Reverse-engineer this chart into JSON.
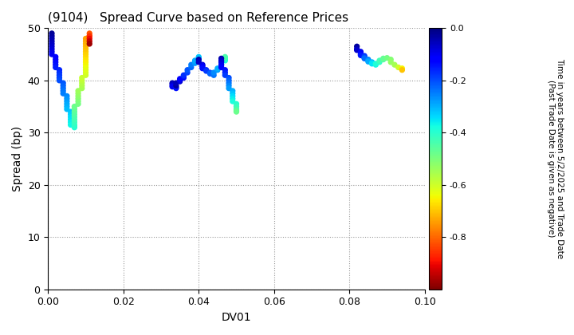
{
  "title": "(9104)   Spread Curve based on Reference Prices",
  "xlabel": "DV01",
  "ylabel": "Spread (bp)",
  "xlim": [
    0.0,
    0.1
  ],
  "ylim": [
    0,
    50
  ],
  "xticks": [
    0.0,
    0.02,
    0.04,
    0.06,
    0.08,
    0.1
  ],
  "yticks": [
    0,
    10,
    20,
    30,
    40,
    50
  ],
  "colorbar_label": "Time in years between 5/2/2025 and Trade Date\n(Past Trade Date is given as negative)",
  "cmap": "jet_r",
  "vmin": -1.0,
  "vmax": 0.0,
  "colorbar_ticks": [
    0.0,
    -0.2,
    -0.4,
    -0.6,
    -0.8
  ],
  "points": [
    [
      0.001,
      49.0,
      -0.02
    ],
    [
      0.001,
      48.5,
      -0.03
    ],
    [
      0.001,
      48.0,
      -0.04
    ],
    [
      0.001,
      47.5,
      -0.05
    ],
    [
      0.001,
      47.0,
      -0.06
    ],
    [
      0.001,
      46.5,
      -0.07
    ],
    [
      0.001,
      46.0,
      -0.08
    ],
    [
      0.001,
      45.5,
      -0.09
    ],
    [
      0.001,
      45.0,
      -0.1
    ],
    [
      0.002,
      44.5,
      -0.11
    ],
    [
      0.002,
      44.0,
      -0.12
    ],
    [
      0.002,
      43.5,
      -0.13
    ],
    [
      0.002,
      43.0,
      -0.14
    ],
    [
      0.002,
      42.5,
      -0.15
    ],
    [
      0.003,
      42.0,
      -0.16
    ],
    [
      0.003,
      41.5,
      -0.17
    ],
    [
      0.003,
      41.0,
      -0.18
    ],
    [
      0.003,
      40.5,
      -0.19
    ],
    [
      0.003,
      40.0,
      -0.2
    ],
    [
      0.004,
      39.5,
      -0.21
    ],
    [
      0.004,
      39.0,
      -0.22
    ],
    [
      0.004,
      38.5,
      -0.23
    ],
    [
      0.004,
      38.0,
      -0.24
    ],
    [
      0.004,
      37.5,
      -0.25
    ],
    [
      0.005,
      37.0,
      -0.26
    ],
    [
      0.005,
      36.5,
      -0.27
    ],
    [
      0.005,
      36.0,
      -0.28
    ],
    [
      0.005,
      35.5,
      -0.29
    ],
    [
      0.005,
      35.0,
      -0.3
    ],
    [
      0.005,
      34.5,
      -0.31
    ],
    [
      0.006,
      34.0,
      -0.32
    ],
    [
      0.006,
      33.5,
      -0.33
    ],
    [
      0.006,
      33.0,
      -0.34
    ],
    [
      0.006,
      32.5,
      -0.35
    ],
    [
      0.006,
      32.0,
      -0.36
    ],
    [
      0.006,
      31.5,
      -0.37
    ],
    [
      0.007,
      31.3,
      -0.38
    ],
    [
      0.007,
      31.0,
      -0.39
    ],
    [
      0.007,
      31.2,
      -0.4
    ],
    [
      0.007,
      31.5,
      -0.41
    ],
    [
      0.007,
      32.0,
      -0.42
    ],
    [
      0.007,
      32.5,
      -0.43
    ],
    [
      0.007,
      33.0,
      -0.44
    ],
    [
      0.007,
      33.5,
      -0.45
    ],
    [
      0.007,
      34.0,
      -0.46
    ],
    [
      0.007,
      34.5,
      -0.47
    ],
    [
      0.007,
      35.0,
      -0.48
    ],
    [
      0.008,
      35.5,
      -0.49
    ],
    [
      0.008,
      36.0,
      -0.5
    ],
    [
      0.008,
      36.5,
      -0.51
    ],
    [
      0.008,
      37.0,
      -0.52
    ],
    [
      0.008,
      37.5,
      -0.53
    ],
    [
      0.008,
      38.0,
      -0.54
    ],
    [
      0.009,
      38.5,
      -0.55
    ],
    [
      0.009,
      39.0,
      -0.56
    ],
    [
      0.009,
      39.5,
      -0.57
    ],
    [
      0.009,
      40.0,
      -0.58
    ],
    [
      0.009,
      40.5,
      -0.59
    ],
    [
      0.01,
      41.0,
      -0.6
    ],
    [
      0.01,
      41.5,
      -0.61
    ],
    [
      0.01,
      42.0,
      -0.62
    ],
    [
      0.01,
      42.5,
      -0.63
    ],
    [
      0.01,
      43.0,
      -0.64
    ],
    [
      0.01,
      43.5,
      -0.65
    ],
    [
      0.01,
      44.0,
      -0.66
    ],
    [
      0.01,
      44.5,
      -0.67
    ],
    [
      0.01,
      45.0,
      -0.68
    ],
    [
      0.01,
      45.5,
      -0.69
    ],
    [
      0.01,
      46.0,
      -0.7
    ],
    [
      0.01,
      46.5,
      -0.71
    ],
    [
      0.01,
      47.0,
      -0.72
    ],
    [
      0.01,
      47.5,
      -0.73
    ],
    [
      0.01,
      48.0,
      -0.74
    ],
    [
      0.011,
      48.5,
      -0.78
    ],
    [
      0.011,
      49.0,
      -0.82
    ],
    [
      0.011,
      48.5,
      -0.86
    ],
    [
      0.011,
      48.0,
      -0.9
    ],
    [
      0.011,
      47.5,
      -0.94
    ],
    [
      0.011,
      47.0,
      -0.97
    ],
    [
      0.033,
      39.5,
      -0.04
    ],
    [
      0.033,
      39.3,
      -0.06
    ],
    [
      0.033,
      39.0,
      -0.08
    ],
    [
      0.033,
      38.8,
      -0.1
    ],
    [
      0.034,
      38.7,
      -0.12
    ],
    [
      0.034,
      38.5,
      -0.14
    ],
    [
      0.034,
      39.0,
      -0.03
    ],
    [
      0.034,
      39.5,
      -0.05
    ],
    [
      0.035,
      39.8,
      -0.07
    ],
    [
      0.035,
      40.0,
      -0.09
    ],
    [
      0.035,
      40.3,
      -0.11
    ],
    [
      0.036,
      40.5,
      -0.13
    ],
    [
      0.036,
      40.8,
      -0.15
    ],
    [
      0.036,
      41.0,
      -0.17
    ],
    [
      0.037,
      41.5,
      -0.19
    ],
    [
      0.037,
      42.0,
      -0.21
    ],
    [
      0.038,
      42.5,
      -0.23
    ],
    [
      0.038,
      43.0,
      -0.25
    ],
    [
      0.039,
      43.3,
      -0.27
    ],
    [
      0.039,
      43.5,
      -0.28
    ],
    [
      0.039,
      43.8,
      -0.29
    ],
    [
      0.04,
      44.0,
      -0.3
    ],
    [
      0.04,
      44.3,
      -0.31
    ],
    [
      0.04,
      44.5,
      -0.32
    ],
    [
      0.04,
      44.0,
      -0.04
    ],
    [
      0.04,
      43.5,
      -0.06
    ],
    [
      0.041,
      43.0,
      -0.08
    ],
    [
      0.041,
      42.8,
      -0.1
    ],
    [
      0.041,
      42.5,
      -0.12
    ],
    [
      0.041,
      42.3,
      -0.14
    ],
    [
      0.042,
      42.0,
      -0.16
    ],
    [
      0.042,
      41.8,
      -0.18
    ],
    [
      0.043,
      41.5,
      -0.2
    ],
    [
      0.043,
      41.3,
      -0.22
    ],
    [
      0.044,
      41.0,
      -0.24
    ],
    [
      0.044,
      41.5,
      -0.26
    ],
    [
      0.045,
      42.0,
      -0.28
    ],
    [
      0.045,
      42.3,
      -0.3
    ],
    [
      0.046,
      42.5,
      -0.32
    ],
    [
      0.046,
      43.0,
      -0.34
    ],
    [
      0.046,
      43.5,
      -0.36
    ],
    [
      0.047,
      43.8,
      -0.38
    ],
    [
      0.047,
      44.0,
      -0.4
    ],
    [
      0.047,
      44.3,
      -0.42
    ],
    [
      0.047,
      44.5,
      -0.44
    ],
    [
      0.046,
      44.2,
      -0.04
    ],
    [
      0.046,
      43.8,
      -0.06
    ],
    [
      0.046,
      43.5,
      -0.08
    ],
    [
      0.046,
      43.0,
      -0.1
    ],
    [
      0.046,
      42.5,
      -0.12
    ],
    [
      0.047,
      42.0,
      -0.14
    ],
    [
      0.047,
      41.5,
      -0.16
    ],
    [
      0.047,
      41.0,
      -0.18
    ],
    [
      0.048,
      40.5,
      -0.2
    ],
    [
      0.048,
      40.0,
      -0.22
    ],
    [
      0.048,
      39.5,
      -0.24
    ],
    [
      0.048,
      39.0,
      -0.26
    ],
    [
      0.048,
      38.5,
      -0.28
    ],
    [
      0.049,
      38.0,
      -0.3
    ],
    [
      0.049,
      37.5,
      -0.32
    ],
    [
      0.049,
      37.0,
      -0.34
    ],
    [
      0.049,
      36.5,
      -0.36
    ],
    [
      0.049,
      36.0,
      -0.38
    ],
    [
      0.05,
      35.5,
      -0.4
    ],
    [
      0.05,
      35.0,
      -0.42
    ],
    [
      0.05,
      34.5,
      -0.44
    ],
    [
      0.05,
      34.2,
      -0.46
    ],
    [
      0.05,
      34.0,
      -0.48
    ],
    [
      0.082,
      46.5,
      -0.03
    ],
    [
      0.082,
      46.0,
      -0.05
    ],
    [
      0.082,
      45.8,
      -0.07
    ],
    [
      0.083,
      45.5,
      -0.09
    ],
    [
      0.083,
      45.3,
      -0.11
    ],
    [
      0.083,
      45.0,
      -0.13
    ],
    [
      0.083,
      44.8,
      -0.15
    ],
    [
      0.084,
      44.7,
      -0.17
    ],
    [
      0.084,
      44.5,
      -0.19
    ],
    [
      0.084,
      44.3,
      -0.21
    ],
    [
      0.084,
      44.2,
      -0.23
    ],
    [
      0.085,
      44.0,
      -0.25
    ],
    [
      0.085,
      43.8,
      -0.27
    ],
    [
      0.085,
      43.6,
      -0.29
    ],
    [
      0.086,
      43.5,
      -0.31
    ],
    [
      0.086,
      43.3,
      -0.33
    ],
    [
      0.086,
      43.2,
      -0.35
    ],
    [
      0.087,
      43.0,
      -0.37
    ],
    [
      0.087,
      43.2,
      -0.39
    ],
    [
      0.088,
      43.5,
      -0.41
    ],
    [
      0.088,
      43.8,
      -0.43
    ],
    [
      0.089,
      44.0,
      -0.45
    ],
    [
      0.089,
      44.2,
      -0.47
    ],
    [
      0.09,
      44.3,
      -0.49
    ],
    [
      0.091,
      44.0,
      -0.51
    ],
    [
      0.091,
      43.5,
      -0.53
    ],
    [
      0.092,
      43.0,
      -0.55
    ],
    [
      0.093,
      42.5,
      -0.6
    ],
    [
      0.094,
      42.3,
      -0.65
    ],
    [
      0.094,
      42.0,
      -0.7
    ]
  ]
}
